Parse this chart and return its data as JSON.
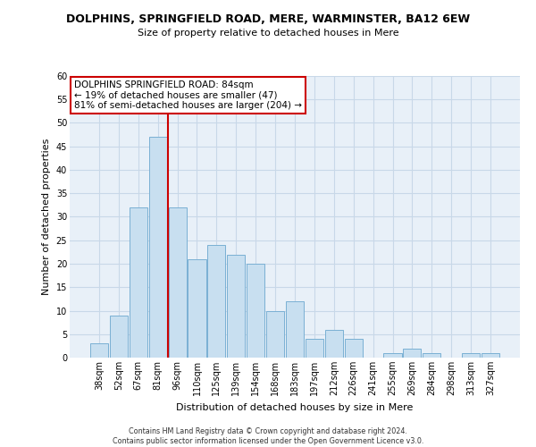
{
  "title": "DOLPHINS, SPRINGFIELD ROAD, MERE, WARMINSTER, BA12 6EW",
  "subtitle": "Size of property relative to detached houses in Mere",
  "xlabel": "Distribution of detached houses by size in Mere",
  "ylabel": "Number of detached properties",
  "bar_labels": [
    "38sqm",
    "52sqm",
    "67sqm",
    "81sqm",
    "96sqm",
    "110sqm",
    "125sqm",
    "139sqm",
    "154sqm",
    "168sqm",
    "183sqm",
    "197sqm",
    "212sqm",
    "226sqm",
    "241sqm",
    "255sqm",
    "269sqm",
    "284sqm",
    "298sqm",
    "313sqm",
    "327sqm"
  ],
  "bar_values": [
    3,
    9,
    32,
    47,
    32,
    21,
    24,
    22,
    20,
    10,
    12,
    4,
    6,
    4,
    0,
    1,
    2,
    1,
    0,
    1,
    1
  ],
  "bar_color": "#c8dff0",
  "bar_edgecolor": "#7ab0d4",
  "ylim": [
    0,
    60
  ],
  "yticks": [
    0,
    5,
    10,
    15,
    20,
    25,
    30,
    35,
    40,
    45,
    50,
    55,
    60
  ],
  "annotation_title": "DOLPHINS SPRINGFIELD ROAD: 84sqm",
  "annotation_line1": "← 19% of detached houses are smaller (47)",
  "annotation_line2": "81% of semi-detached houses are larger (204) →",
  "annotation_box_facecolor": "#ffffff",
  "annotation_box_edgecolor": "#cc0000",
  "ref_line_color": "#cc0000",
  "bg_color": "#e8f0f8",
  "grid_color": "#c8d8e8",
  "footer1": "Contains HM Land Registry data © Crown copyright and database right 2024.",
  "footer2": "Contains public sector information licensed under the Open Government Licence v3.0.",
  "title_fontsize": 9,
  "subtitle_fontsize": 8,
  "axis_label_fontsize": 8,
  "tick_fontsize": 7,
  "annotation_fontsize": 7.5,
  "footer_fontsize": 5.8
}
